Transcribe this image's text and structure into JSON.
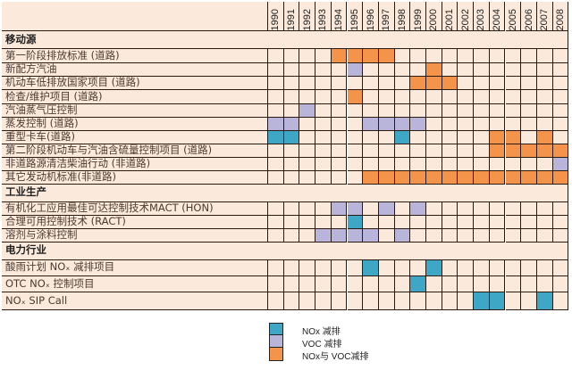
{
  "chart_data": {
    "type": "table",
    "years": [
      "1990",
      "1991",
      "1992",
      "1993",
      "1994",
      "1995",
      "1996",
      "1997",
      "1998",
      "1999",
      "2000",
      "2001",
      "2002",
      "2003",
      "2004",
      "2005",
      "2006",
      "2007",
      "2008"
    ],
    "colors": {
      "bg": "#fbeadb",
      "nox": "#3ea7c5",
      "voc": "#b9b5da",
      "both": "#f4944a"
    },
    "legend": [
      {
        "key": "nox",
        "label": "NOx 减排"
      },
      {
        "key": "voc",
        "label": "VOC 减排"
      },
      {
        "key": "both",
        "label": "NOx与 VOC减排"
      }
    ],
    "rows": [
      {
        "section": true,
        "label": "移动源"
      },
      {
        "label": "第一阶段排放标准 (道路)",
        "marks": {
          "1994": "both",
          "1995": "both",
          "1996": "both",
          "1997": "both"
        }
      },
      {
        "label": "新配方汽油",
        "marks": {
          "1995": "voc",
          "2000": "both"
        }
      },
      {
        "label": "机动车低排放国家项目 (道路)",
        "marks": {
          "1999": "both",
          "2000": "both",
          "2001": "both"
        }
      },
      {
        "label": "检查/维护项目 (道路)",
        "marks": {
          "1995": "both"
        }
      },
      {
        "label": "汽油蒸气压控制",
        "marks": {
          "1992": "voc"
        }
      },
      {
        "label": "蒸发控制 (道路)",
        "marks": {
          "1990": "voc",
          "1991": "voc",
          "1996": "voc",
          "1997": "voc",
          "1998": "voc",
          "1999": "voc"
        }
      },
      {
        "label": "重型卡车(道路)",
        "marks": {
          "1990": "nox",
          "1991": "nox",
          "1998": "nox",
          "2004": "both",
          "2005": "both",
          "2007": "both"
        }
      },
      {
        "label": "第二阶段机动车与汽油含硫量控制项目 (道路)",
        "marks": {
          "2004": "both",
          "2005": "both",
          "2006": "both",
          "2007": "both",
          "2008": "both"
        }
      },
      {
        "label": "非道路源清洁柴油行动 (非道路)",
        "marks": {
          "2008": "voc"
        }
      },
      {
        "label": "其它发动机标准(非道路)",
        "marks": {
          "1996": "both",
          "1997": "both",
          "1998": "both",
          "1999": "both",
          "2000": "both",
          "2001": "both",
          "2002": "both",
          "2003": "both",
          "2004": "both",
          "2005": "both",
          "2006": "both",
          "2007": "both",
          "2008": "both"
        }
      },
      {
        "section": true,
        "label": "工业生产"
      },
      {
        "label": "有机化工应用最佳可达控制技术MACT (HON)",
        "marks": {
          "1994": "voc",
          "1995": "voc",
          "1997": "voc",
          "1999": "voc"
        }
      },
      {
        "label": "合理可用控制技术 (RACT)",
        "marks": {
          "1995": "nox"
        }
      },
      {
        "label": "溶剂与涂料控制",
        "marks": {
          "1993": "voc",
          "1994": "voc",
          "1995": "voc",
          "1996": "voc",
          "1998": "voc"
        }
      },
      {
        "section": true,
        "label": "电力行业"
      },
      {
        "label": "酸雨计划 NOₓ 减排项目",
        "marks": {
          "1996": "nox",
          "2000": "nox"
        }
      },
      {
        "label": "OTC NOₓ  控制项目",
        "marks": {
          "1999": "nox"
        }
      },
      {
        "label": "NOₓ  SIP Call",
        "marks": {
          "2003": "nox",
          "2004": "nox",
          "2007": "nox"
        }
      }
    ]
  }
}
